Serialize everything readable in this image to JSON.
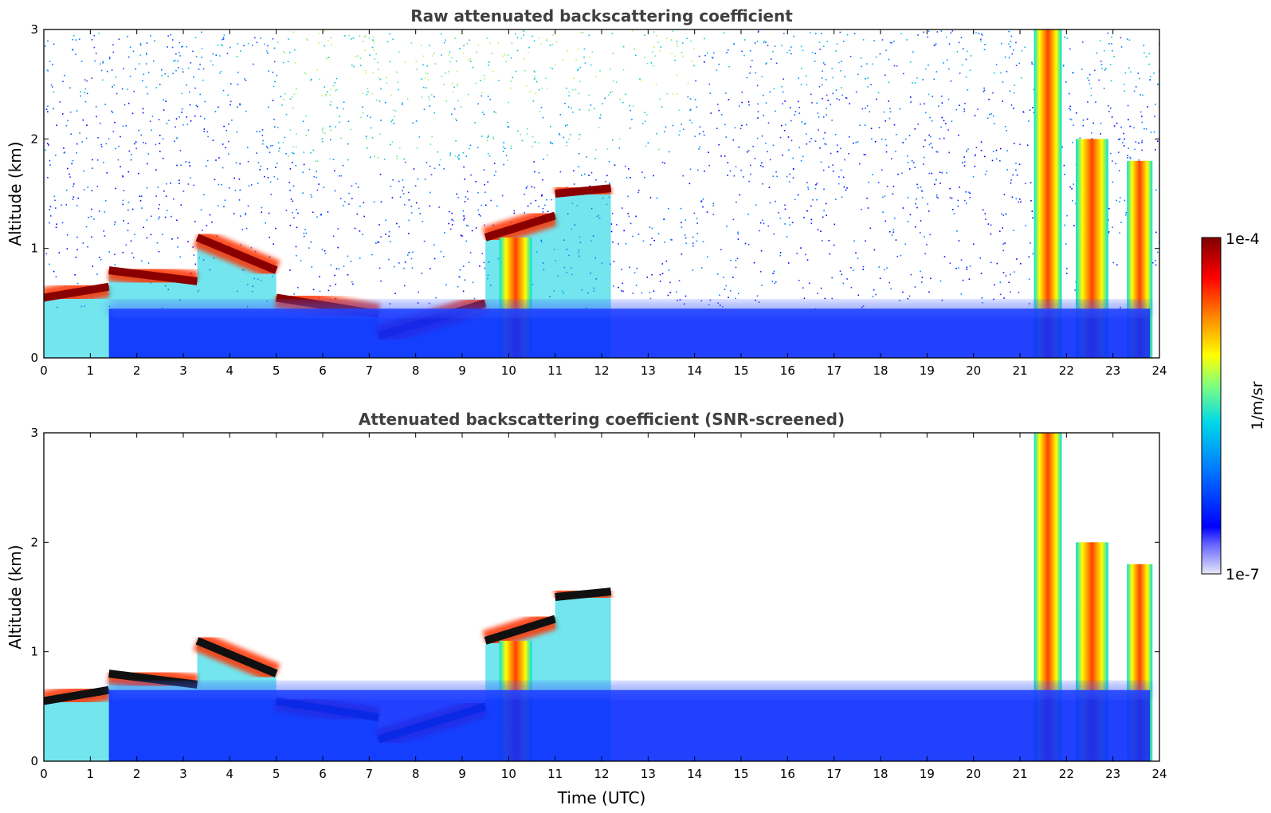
{
  "chart_data": [
    {
      "type": "heatmap",
      "title": "Raw attenuated backscattering coefficient",
      "xlabel": "",
      "ylabel": "Altitude (km)",
      "xlim": [
        0,
        24
      ],
      "ylim": [
        0,
        3
      ],
      "xticks": [
        "0",
        "1",
        "2",
        "3",
        "4",
        "5",
        "6",
        "7",
        "8",
        "9",
        "10",
        "11",
        "12",
        "13",
        "14",
        "15",
        "16",
        "17",
        "18",
        "19",
        "20",
        "21",
        "22",
        "23",
        "24"
      ],
      "yticks": [
        "0",
        "1",
        "2",
        "3"
      ],
      "screened": false,
      "features": [
        {
          "kind": "layer",
          "x": [
            0,
            1.4
          ],
          "y": [
            0.55,
            0.65
          ]
        },
        {
          "kind": "layer",
          "x": [
            1.4,
            3.3
          ],
          "y": [
            0.8,
            0.7
          ]
        },
        {
          "kind": "layer",
          "x": [
            3.3,
            5.0
          ],
          "y": [
            1.1,
            0.8
          ]
        },
        {
          "kind": "layer",
          "x": [
            5.0,
            7.2
          ],
          "y": [
            0.55,
            0.4
          ]
        },
        {
          "kind": "layer",
          "x": [
            7.2,
            9.5
          ],
          "y": [
            0.2,
            0.5
          ]
        },
        {
          "kind": "layer",
          "x": [
            9.5,
            11.0
          ],
          "y": [
            1.1,
            1.3
          ]
        },
        {
          "kind": "layer",
          "x": [
            11.0,
            12.2
          ],
          "y": [
            1.5,
            1.55
          ]
        },
        {
          "kind": "column",
          "x": [
            9.8,
            10.5
          ],
          "y": [
            0,
            1.1
          ]
        },
        {
          "kind": "column",
          "x": [
            21.3,
            21.9
          ],
          "y": [
            0,
            3.0
          ]
        },
        {
          "kind": "column",
          "x": [
            22.2,
            22.9
          ],
          "y": [
            0,
            2.0
          ]
        },
        {
          "kind": "column",
          "x": [
            23.3,
            23.85
          ],
          "y": [
            0,
            1.8
          ]
        },
        {
          "kind": "boundary_layer",
          "x": [
            1.4,
            23.8
          ],
          "y": [
            0,
            0.45
          ]
        }
      ]
    },
    {
      "type": "heatmap",
      "title": "Attenuated backscattering coefficient (SNR-screened)",
      "xlabel": "Time (UTC)",
      "ylabel": "Altitude (km)",
      "xlim": [
        0,
        24
      ],
      "ylim": [
        0,
        3
      ],
      "xticks": [
        "0",
        "1",
        "2",
        "3",
        "4",
        "5",
        "6",
        "7",
        "8",
        "9",
        "10",
        "11",
        "12",
        "13",
        "14",
        "15",
        "16",
        "17",
        "18",
        "19",
        "20",
        "21",
        "22",
        "23",
        "24"
      ],
      "yticks": [
        "0",
        "1",
        "2",
        "3"
      ],
      "screened": true,
      "features": [
        {
          "kind": "layer",
          "x": [
            0,
            1.4
          ],
          "y": [
            0.55,
            0.65
          ]
        },
        {
          "kind": "layer",
          "x": [
            1.4,
            3.3
          ],
          "y": [
            0.8,
            0.7
          ]
        },
        {
          "kind": "layer",
          "x": [
            3.3,
            5.0
          ],
          "y": [
            1.1,
            0.8
          ]
        },
        {
          "kind": "layer",
          "x": [
            5.0,
            7.2
          ],
          "y": [
            0.55,
            0.4
          ]
        },
        {
          "kind": "layer",
          "x": [
            7.2,
            9.5
          ],
          "y": [
            0.2,
            0.5
          ]
        },
        {
          "kind": "layer",
          "x": [
            9.5,
            11.0
          ],
          "y": [
            1.1,
            1.3
          ]
        },
        {
          "kind": "layer",
          "x": [
            11.0,
            12.2
          ],
          "y": [
            1.5,
            1.55
          ]
        },
        {
          "kind": "column",
          "x": [
            9.8,
            10.5
          ],
          "y": [
            0,
            1.1
          ]
        },
        {
          "kind": "column",
          "x": [
            21.3,
            21.9
          ],
          "y": [
            0,
            3.0
          ]
        },
        {
          "kind": "column",
          "x": [
            22.2,
            22.9
          ],
          "y": [
            0,
            2.0
          ]
        },
        {
          "kind": "column",
          "x": [
            23.3,
            23.85
          ],
          "y": [
            0,
            1.8
          ]
        },
        {
          "kind": "boundary_layer",
          "x": [
            1.4,
            23.8
          ],
          "y": [
            0,
            0.65
          ]
        }
      ]
    }
  ],
  "colorbar": {
    "label": "1/m/sr",
    "max_label": "1e-4",
    "min_label": "1e-7",
    "scale": "log",
    "colormap": [
      "#e8e8f8",
      "#0000ff",
      "#0096ff",
      "#00e0e0",
      "#80ff80",
      "#ffff00",
      "#ff8000",
      "#ff0000",
      "#800000"
    ]
  }
}
